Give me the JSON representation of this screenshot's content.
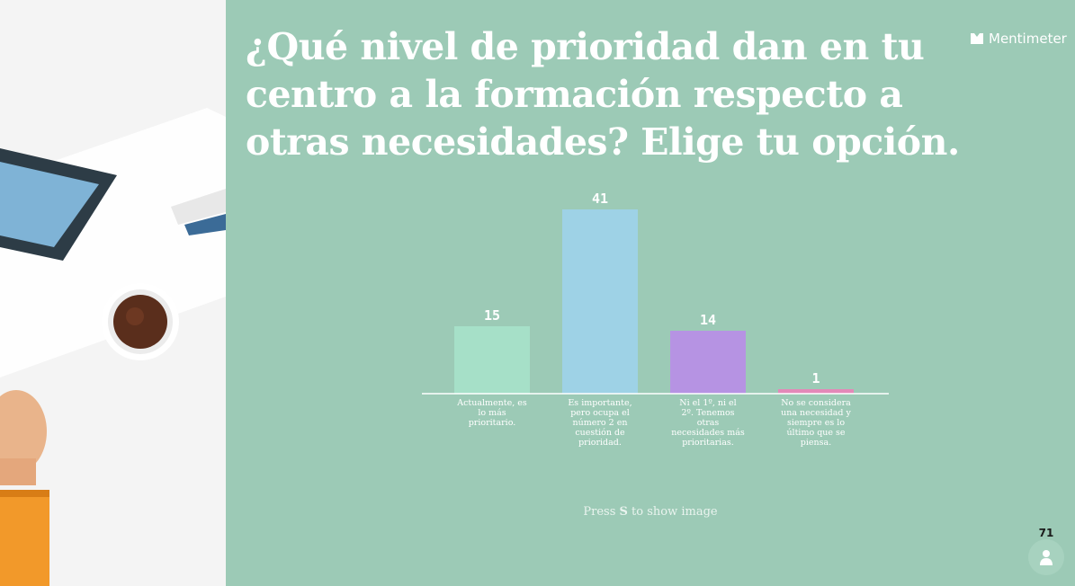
{
  "question": {
    "title": "¿Qué nivel de prioridad dan en tu centro a la formación respecto a otras necesidades? Elige tu opción."
  },
  "brand": {
    "name": "Mentimeter",
    "icon": "mentimeter-logo-icon"
  },
  "hint": {
    "prefix": "Press ",
    "key": "S",
    "suffix": " to show image"
  },
  "participants": {
    "count": "71",
    "icon": "person-icon"
  },
  "colors": {
    "background": "#9ccab6",
    "bars": [
      "#a6e0c8",
      "#9ed2e6",
      "#b693e3",
      "#e389b8"
    ]
  },
  "chart_data": {
    "type": "bar",
    "categories": [
      "Actualmente, es lo más prioritario.",
      "Es importante, pero ocupa el número 2 en cuestión de prioridad.",
      "Ni el 1º, ni el 2º. Tenemos otras necesidades más prioritarias.",
      "No se considera una necesidad y siempre es lo último que se piensa."
    ],
    "values": [
      15,
      41,
      14,
      1
    ],
    "title": "",
    "xlabel": "",
    "ylabel": "",
    "ylim": [
      0,
      41
    ],
    "grid": false,
    "legend": "none"
  }
}
